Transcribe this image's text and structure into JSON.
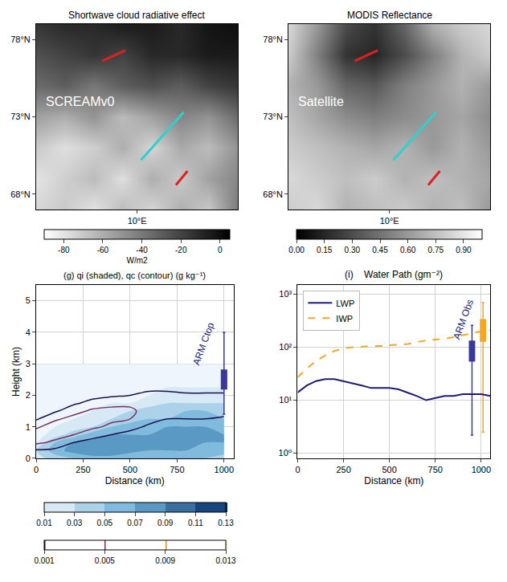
{
  "chart_data": [
    {
      "type": "heatmap",
      "title": "Shortwave cloud radiative effect",
      "label": "SCREAMv0",
      "x": [
        -3,
        0.7,
        4.4,
        8.1,
        11.9,
        15.6,
        19.3,
        23
      ],
      "y": [
        67,
        69,
        71,
        73,
        75,
        77,
        79
      ],
      "z": [
        [
          -75,
          -70,
          -80,
          -65,
          -75,
          -60,
          -70,
          -40
        ],
        [
          -80,
          -72,
          -65,
          -78,
          -60,
          -70,
          -55,
          -45
        ],
        [
          -70,
          -78,
          -72,
          -60,
          -75,
          -58,
          -65,
          -50
        ],
        [
          -55,
          -60,
          -50,
          -65,
          -55,
          -45,
          -50,
          -35
        ],
        [
          -35,
          -30,
          -40,
          -30,
          -25,
          -30,
          -20,
          -15
        ],
        [
          -25,
          -20,
          -15,
          -20,
          -10,
          -10,
          -5,
          -5
        ],
        [
          -15,
          -10,
          -10,
          -5,
          -5,
          -10,
          -2,
          0
        ]
      ],
      "colorbar": {
        "range": [
          -90,
          5
        ],
        "ticks": [
          -80,
          -60,
          -40,
          -20,
          0
        ],
        "title": "W/m2"
      },
      "xlim": [
        -3,
        23
      ],
      "xticks": [
        {
          "value": 10,
          "label": "10°E"
        }
      ],
      "ylim": [
        67,
        79
      ],
      "yticks": [
        {
          "value": 68,
          "label": "68°N"
        },
        {
          "value": 73,
          "label": "73°N"
        },
        {
          "value": 78,
          "label": "78°N"
        }
      ],
      "grid": false,
      "transects": [
        {
          "color": "#e02020",
          "x": [
            5.5,
            8.5
          ],
          "y": [
            76.6,
            77.3
          ]
        },
        {
          "color": "#30d0d0",
          "x": [
            10.5,
            16
          ],
          "y": [
            70.2,
            73.3
          ]
        },
        {
          "color": "#e02020",
          "x": [
            15,
            16.5
          ],
          "y": [
            68.6,
            69.5
          ]
        }
      ]
    },
    {
      "type": "heatmap",
      "title": "MODIS Reflectance",
      "label": "Satellite",
      "x": [
        -3,
        0.7,
        4.4,
        8.1,
        11.9,
        15.6,
        19.3,
        23
      ],
      "y": [
        67,
        69,
        71,
        73,
        75,
        77,
        79
      ],
      "z": [
        [
          0.8,
          0.85,
          0.7,
          0.75,
          0.8,
          0.7,
          0.75,
          0.6
        ],
        [
          0.85,
          0.8,
          0.75,
          0.8,
          0.7,
          0.75,
          0.7,
          0.65
        ],
        [
          0.8,
          0.75,
          0.7,
          0.65,
          0.7,
          0.6,
          0.7,
          0.6
        ],
        [
          0.75,
          0.65,
          0.55,
          0.5,
          0.55,
          0.6,
          0.65,
          0.55
        ],
        [
          0.7,
          0.6,
          0.4,
          0.35,
          0.5,
          0.6,
          0.7,
          0.6
        ],
        [
          0.8,
          0.5,
          0.2,
          0.15,
          0.3,
          0.5,
          0.7,
          0.8
        ],
        [
          0.85,
          0.6,
          0.3,
          0.2,
          0.4,
          0.7,
          0.8,
          0.85
        ]
      ],
      "colorbar": {
        "range": [
          0,
          1
        ],
        "ticks": [
          {
            "value": 0,
            "label": "0.00"
          },
          {
            "value": 0.15,
            "label": "0.15"
          },
          {
            "value": 0.3,
            "label": "0.30"
          },
          {
            "value": 0.45,
            "label": "0.45"
          },
          {
            "value": 0.6,
            "label": "0.60"
          },
          {
            "value": 0.75,
            "label": "0.75"
          },
          {
            "value": 0.9,
            "label": "0.90"
          }
        ]
      },
      "xlim": [
        -3,
        23
      ],
      "xticks": [
        {
          "value": 10,
          "label": "10°E"
        }
      ],
      "ylim": [
        67,
        79
      ],
      "yticks": [
        {
          "value": 68,
          "label": "68°N"
        },
        {
          "value": 73,
          "label": "73°N"
        },
        {
          "value": 78,
          "label": "78°N"
        }
      ],
      "grid": false,
      "transects": [
        {
          "color": "#e02020",
          "x": [
            5.5,
            8.5
          ],
          "y": [
            76.6,
            77.3
          ]
        },
        {
          "color": "#30d0d0",
          "x": [
            10.5,
            16
          ],
          "y": [
            70.2,
            73.3
          ]
        },
        {
          "color": "#e02020",
          "x": [
            15,
            16.5
          ],
          "y": [
            68.6,
            69.5
          ]
        }
      ]
    },
    {
      "type": "contour",
      "title": "(g) qi (shaded), qc (contour) (g kg⁻¹)",
      "xlabel": "Distance (km)",
      "ylabel": "Height (km)",
      "x": [
        0,
        100,
        200,
        300,
        400,
        500,
        600,
        700,
        800,
        900,
        1000
      ],
      "y": [
        0,
        0.25,
        0.5,
        0.75,
        1.0,
        1.25,
        1.5,
        1.75,
        2.0,
        2.25,
        2.5,
        2.75,
        3.0
      ],
      "qi": {
        "z": [
          [
            0.02,
            0.04,
            0.05,
            0.06,
            0.06,
            0.05,
            0.05,
            0.05,
            0.05,
            0.05,
            0.04
          ],
          [
            0.03,
            0.06,
            0.08,
            0.09,
            0.09,
            0.08,
            0.07,
            0.07,
            0.07,
            0.06,
            0.06
          ],
          [
            0.01,
            0.05,
            0.07,
            0.08,
            0.09,
            0.08,
            0.08,
            0.08,
            0.07,
            0.07,
            0.07
          ],
          [
            0,
            0.02,
            0.04,
            0.06,
            0.07,
            0.07,
            0.07,
            0.07,
            0.08,
            0.07,
            0.07
          ],
          [
            0,
            0.01,
            0.02,
            0.03,
            0.05,
            0.06,
            0.06,
            0.07,
            0.07,
            0.07,
            0.06
          ],
          [
            0,
            0,
            0.01,
            0.02,
            0.03,
            0.04,
            0.05,
            0.05,
            0.06,
            0.06,
            0.05
          ],
          [
            0,
            0,
            0,
            0.01,
            0.02,
            0.03,
            0.04,
            0.04,
            0.05,
            0.05,
            0.04
          ],
          [
            0,
            0,
            0,
            0,
            0.01,
            0.01,
            0.02,
            0.03,
            0.03,
            0.03,
            0.03
          ],
          [
            0,
            0,
            0,
            0,
            0,
            0.01,
            0.01,
            0.02,
            0.02,
            0.02,
            0.02
          ],
          [
            0,
            0,
            0,
            0,
            0,
            0,
            0,
            0.01,
            0.01,
            0.01,
            0.01
          ],
          [
            0,
            0,
            0,
            0,
            0,
            0,
            0,
            0,
            0,
            0,
            0
          ],
          [
            0,
            0,
            0,
            0,
            0,
            0,
            0,
            0,
            0,
            0,
            0
          ],
          [
            0,
            0,
            0,
            0,
            0,
            0,
            0,
            0,
            0,
            0,
            0
          ]
        ],
        "colorbar": {
          "ticks": [
            0.01,
            0.03,
            0.05,
            0.07,
            0.09,
            0.11,
            0.13
          ]
        }
      },
      "qc": {
        "z": [
          [
            0,
            0,
            0,
            0,
            0,
            0,
            0,
            0,
            0,
            0,
            0
          ],
          [
            0.0005,
            0,
            0,
            0,
            0,
            0,
            0,
            0,
            0,
            0,
            0
          ],
          [
            0.006,
            0.004,
            0.001,
            0,
            0,
            0,
            0,
            0,
            0,
            0,
            0
          ],
          [
            0.008,
            0.007,
            0.005,
            0.002,
            0.001,
            0,
            0,
            0,
            0,
            0,
            0
          ],
          [
            0.004,
            0.008,
            0.007,
            0.006,
            0.004,
            0.002,
            0.0005,
            0,
            0,
            0,
            0
          ],
          [
            0.0005,
            0.004,
            0.007,
            0.007,
            0.006,
            0.005,
            0.002,
            0.001,
            0.001,
            0.001,
            0.0008
          ],
          [
            0,
            0.0005,
            0.003,
            0.006,
            0.007,
            0.006,
            0.003,
            0.002,
            0.003,
            0.002,
            0.0015
          ],
          [
            0,
            0,
            0.0005,
            0.002,
            0.003,
            0.004,
            0.003,
            0.002,
            0.002,
            0.002,
            0.0015
          ],
          [
            0,
            0,
            0,
            0,
            0.0005,
            0.001,
            0.0015,
            0.0015,
            0.0012,
            0.0012,
            0.0012
          ],
          [
            0,
            0,
            0,
            0,
            0,
            0,
            0.0005,
            0.0005,
            0.0005,
            0.0005,
            0.0005
          ],
          [
            0,
            0,
            0,
            0,
            0,
            0,
            0,
            0,
            0,
            0,
            0
          ],
          [
            0,
            0,
            0,
            0,
            0,
            0,
            0,
            0,
            0,
            0,
            0
          ],
          [
            0,
            0,
            0,
            0,
            0,
            0,
            0,
            0,
            0,
            0,
            0
          ]
        ],
        "colorbar": {
          "ticks": [
            0.001,
            0.005,
            0.009,
            0.013
          ]
        }
      },
      "boxes": [
        {
          "x": 1000,
          "lowerfence": 1.4,
          "q1": 2.2,
          "median": 2.4,
          "q3": 2.8,
          "upperfence": 4.0,
          "color": "#3a3a9a"
        }
      ],
      "annotation": "ARM Ctop",
      "xlim": [
        0,
        1050
      ],
      "xticks": [
        0,
        250,
        500,
        750,
        1000
      ],
      "ylim": [
        0,
        5.5
      ],
      "yticks": [
        0,
        1,
        2,
        3,
        4,
        5
      ],
      "grid": true
    },
    {
      "type": "line",
      "title": "(i)    Water Path (gm⁻²)",
      "xlabel": "Distance (km)",
      "x": [
        0,
        50,
        100,
        150,
        200,
        250,
        300,
        350,
        400,
        450,
        500,
        550,
        600,
        650,
        700,
        750,
        800,
        850,
        900,
        950,
        1000,
        1050
      ],
      "series": [
        {
          "name": "LWP",
          "color": "#1c1c78",
          "line_style": "solid",
          "values": [
            14,
            19,
            23,
            25,
            25,
            23,
            21,
            19,
            17,
            17,
            17,
            16,
            14,
            12,
            10,
            11,
            12,
            12,
            13,
            13,
            13,
            12
          ]
        },
        {
          "name": "IWP",
          "color": "#f5a623",
          "line_style": "dashed",
          "values": [
            27,
            40,
            55,
            70,
            85,
            95,
            100,
            103,
            105,
            106,
            108,
            110,
            115,
            125,
            135,
            140,
            145,
            155,
            170,
            185,
            200,
            210
          ]
        }
      ],
      "boxes": [
        {
          "x": 950,
          "lowerfence": 2.2,
          "q1": 55,
          "median": 95,
          "q3": 130,
          "upperfence": 260,
          "color": "#3a3a9a"
        },
        {
          "x": 1010,
          "lowerfence": 2.5,
          "q1": 130,
          "median": 230,
          "q3": 330,
          "upperfence": 700,
          "color": "#f5a623"
        }
      ],
      "annotation": "ARM Obs",
      "log": "y",
      "xlim": [
        0,
        1050
      ],
      "xticks": [
        0,
        250,
        500,
        750,
        1000
      ],
      "ylim": [
        0.8,
        1500
      ],
      "yticks": [
        {
          "value": 1,
          "label": "10⁰"
        },
        {
          "value": 10,
          "label": "10¹"
        },
        {
          "value": 100,
          "label": "10²"
        },
        {
          "value": 1000,
          "label": "10³"
        }
      ],
      "grid": true,
      "legend": "upper left"
    }
  ]
}
